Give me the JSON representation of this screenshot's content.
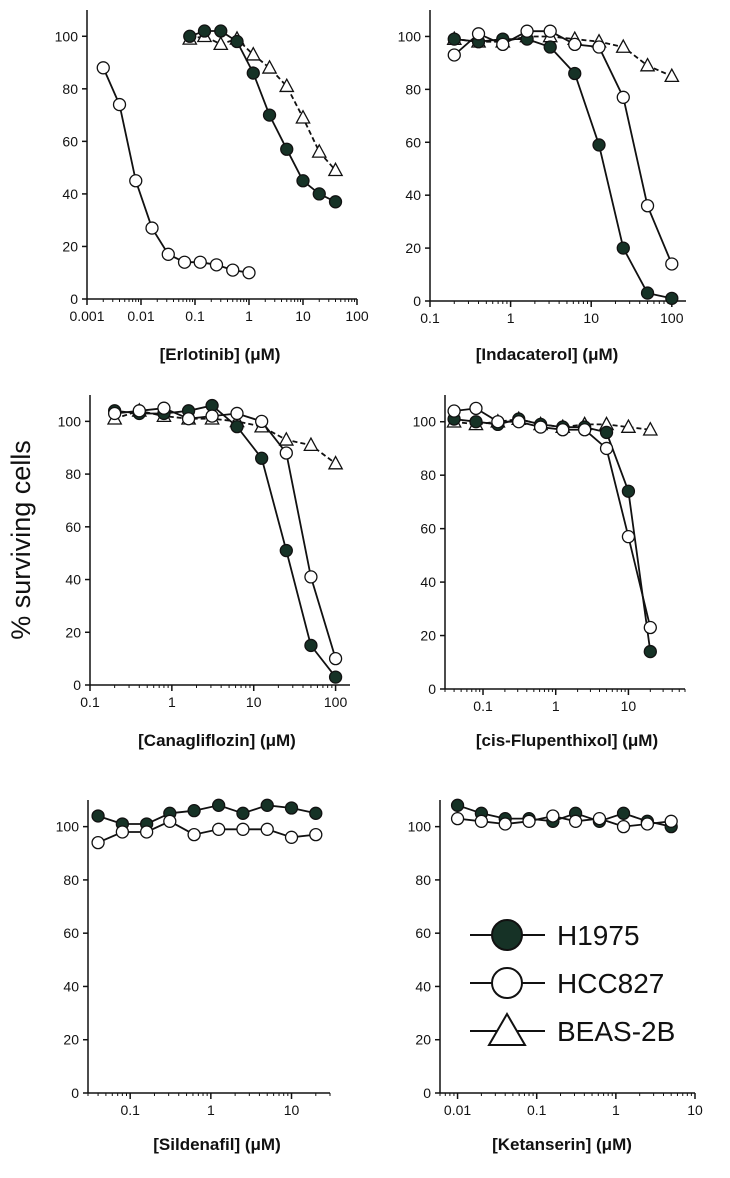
{
  "figure": {
    "ylabel": "% surviving cells",
    "colors": {
      "H1975": "#163226",
      "HCC827": "#ffffff",
      "BEAS-2B": "#ffffff",
      "ink": "#111111"
    }
  },
  "legend": {
    "entries": [
      {
        "name": "H1975",
        "marker": "filled-circle"
      },
      {
        "name": "HCC827",
        "marker": "open-circle"
      },
      {
        "name": "BEAS-2B",
        "marker": "open-triangle"
      }
    ]
  },
  "chart_data": [
    {
      "type": "line",
      "title": "",
      "xlabel": "[Erlotinib] (μM)",
      "ylabel": "% surviving cells",
      "xscale": "log",
      "xlim": [
        0.001,
        100
      ],
      "xticks": [
        0.001,
        0.01,
        0.1,
        1,
        10,
        100
      ],
      "xtick_labels": [
        "0.001",
        "0.01",
        "0.1",
        "1",
        "10",
        "100"
      ],
      "ylim": [
        0,
        110
      ],
      "yticks": [
        0,
        20,
        40,
        60,
        80,
        100
      ],
      "ytick_labels": [
        "0",
        "20",
        "40",
        "60",
        "80",
        "100"
      ],
      "series": [
        {
          "name": "H1975",
          "marker": "filled-circle",
          "line": "solid",
          "x": [
            0.08,
            0.15,
            0.3,
            0.6,
            1.2,
            2.4,
            5,
            10,
            20,
            40
          ],
          "y": [
            100,
            102,
            102,
            98,
            86,
            70,
            57,
            45,
            40,
            37
          ]
        },
        {
          "name": "HCC827",
          "marker": "open-circle",
          "line": "solid",
          "x": [
            0.002,
            0.004,
            0.008,
            0.016,
            0.032,
            0.064,
            0.125,
            0.25,
            0.5,
            1
          ],
          "y": [
            88,
            74,
            45,
            27,
            17,
            14,
            14,
            13,
            11,
            10
          ]
        },
        {
          "name": "BEAS-2B",
          "marker": "open-triangle",
          "line": "dashed",
          "x": [
            0.08,
            0.15,
            0.3,
            0.6,
            1.2,
            2.4,
            5,
            10,
            20,
            40
          ],
          "y": [
            99,
            100,
            97,
            99,
            93,
            88,
            81,
            69,
            56,
            49
          ]
        }
      ]
    },
    {
      "type": "line",
      "title": "",
      "xlabel": "[Indacaterol] (μM)",
      "ylabel": "% surviving cells",
      "xscale": "log",
      "xlim": [
        0.1,
        150
      ],
      "xticks": [
        0.1,
        1,
        10,
        100
      ],
      "xtick_labels": [
        "0.1",
        "1",
        "10",
        "100"
      ],
      "ylim": [
        0,
        110
      ],
      "yticks": [
        0,
        20,
        40,
        60,
        80,
        100
      ],
      "ytick_labels": [
        "0",
        "20",
        "40",
        "60",
        "80",
        "100"
      ],
      "series": [
        {
          "name": "H1975",
          "marker": "filled-circle",
          "line": "solid",
          "x": [
            0.2,
            0.4,
            0.8,
            1.6,
            3.1,
            6.25,
            12.5,
            25,
            50,
            100
          ],
          "y": [
            99,
            98,
            99,
            99,
            96,
            86,
            59,
            20,
            3,
            1
          ]
        },
        {
          "name": "HCC827",
          "marker": "open-circle",
          "line": "solid",
          "x": [
            0.2,
            0.4,
            0.8,
            1.6,
            3.1,
            6.25,
            12.5,
            25,
            50,
            100
          ],
          "y": [
            93,
            101,
            97,
            102,
            102,
            97,
            96,
            77,
            36,
            14
          ]
        },
        {
          "name": "BEAS-2B",
          "marker": "open-triangle",
          "line": "dashed",
          "x": [
            0.2,
            0.4,
            0.8,
            1.6,
            3.1,
            6.25,
            12.5,
            25,
            50,
            100
          ],
          "y": [
            99,
            98,
            98,
            100,
            100,
            99,
            98,
            96,
            89,
            85
          ]
        }
      ]
    },
    {
      "type": "line",
      "title": "",
      "xlabel": "[Canagliflozin] (μM)",
      "ylabel": "% surviving cells",
      "xscale": "log",
      "xlim": [
        0.1,
        150
      ],
      "xticks": [
        0.1,
        1,
        10,
        100
      ],
      "xtick_labels": [
        "0.1",
        "1",
        "10",
        "100"
      ],
      "ylim": [
        0,
        110
      ],
      "yticks": [
        0,
        20,
        40,
        60,
        80,
        100
      ],
      "ytick_labels": [
        "0",
        "20",
        "40",
        "60",
        "80",
        "100"
      ],
      "series": [
        {
          "name": "H1975",
          "marker": "filled-circle",
          "line": "solid",
          "x": [
            0.2,
            0.4,
            0.8,
            1.6,
            3.1,
            6.25,
            12.5,
            25,
            50,
            100
          ],
          "y": [
            104,
            103,
            103,
            104,
            106,
            98,
            86,
            51,
            15,
            3
          ]
        },
        {
          "name": "HCC827",
          "marker": "open-circle",
          "line": "solid",
          "x": [
            0.2,
            0.4,
            0.8,
            1.6,
            3.1,
            6.25,
            12.5,
            25,
            50,
            100
          ],
          "y": [
            103,
            104,
            105,
            101,
            102,
            103,
            100,
            88,
            41,
            10
          ]
        },
        {
          "name": "BEAS-2B",
          "marker": "open-triangle",
          "line": "dashed",
          "x": [
            0.2,
            0.4,
            0.8,
            1.6,
            3.1,
            6.25,
            12.5,
            25,
            50,
            100
          ],
          "y": [
            101,
            104,
            102,
            101,
            101,
            100,
            98,
            93,
            91,
            84
          ]
        }
      ]
    },
    {
      "type": "line",
      "title": "",
      "xlabel": "[cis-Flupenthixol] (μM)",
      "ylabel": "% surviving cells",
      "xscale": "log",
      "xlim": [
        0.03,
        60
      ],
      "xticks": [
        0.1,
        1,
        10
      ],
      "xtick_labels": [
        "0.1",
        "1",
        "10"
      ],
      "ylim": [
        0,
        110
      ],
      "yticks": [
        0,
        20,
        40,
        60,
        80,
        100
      ],
      "ytick_labels": [
        "0",
        "20",
        "40",
        "60",
        "80",
        "100"
      ],
      "series": [
        {
          "name": "H1975",
          "marker": "filled-circle",
          "line": "solid",
          "x": [
            0.04,
            0.08,
            0.16,
            0.31,
            0.62,
            1.25,
            2.5,
            5,
            10,
            20
          ],
          "y": [
            101,
            100,
            99,
            101,
            99,
            98,
            98,
            96,
            74,
            14
          ]
        },
        {
          "name": "HCC827",
          "marker": "open-circle",
          "line": "solid",
          "x": [
            0.04,
            0.08,
            0.16,
            0.31,
            0.62,
            1.25,
            2.5,
            5,
            10,
            20
          ],
          "y": [
            104,
            105,
            100,
            100,
            98,
            97,
            97,
            90,
            57,
            23
          ]
        },
        {
          "name": "BEAS-2B",
          "marker": "open-triangle",
          "line": "dashed",
          "x": [
            0.04,
            0.08,
            0.16,
            0.31,
            0.62,
            1.25,
            2.5,
            5,
            10,
            20
          ],
          "y": [
            100,
            99,
            100,
            101,
            99,
            98,
            99,
            99,
            98,
            97
          ]
        }
      ]
    },
    {
      "type": "line",
      "title": "",
      "xlabel": "[Sildenafil] (μM)",
      "ylabel": "% surviving cells",
      "xscale": "log",
      "xlim": [
        0.03,
        30
      ],
      "xticks": [
        0.1,
        1,
        10
      ],
      "xtick_labels": [
        "0.1",
        "1",
        "10"
      ],
      "ylim": [
        0,
        110
      ],
      "yticks": [
        0,
        20,
        40,
        60,
        80,
        100
      ],
      "ytick_labels": [
        "0",
        "20",
        "40",
        "60",
        "80",
        "100"
      ],
      "series": [
        {
          "name": "H1975",
          "marker": "filled-circle",
          "line": "solid",
          "x": [
            0.04,
            0.08,
            0.16,
            0.31,
            0.62,
            1.25,
            2.5,
            5,
            10,
            20
          ],
          "y": [
            104,
            101,
            101,
            105,
            106,
            108,
            105,
            108,
            107,
            105
          ]
        },
        {
          "name": "HCC827",
          "marker": "open-circle",
          "line": "solid",
          "x": [
            0.04,
            0.08,
            0.16,
            0.31,
            0.62,
            1.25,
            2.5,
            5,
            10,
            20
          ],
          "y": [
            94,
            98,
            98,
            102,
            97,
            99,
            99,
            99,
            96,
            97
          ]
        }
      ]
    },
    {
      "type": "line",
      "title": "",
      "xlabel": "[Ketanserin] (μM)",
      "ylabel": "% surviving cells",
      "xscale": "log",
      "xlim": [
        0.006,
        10
      ],
      "xticks": [
        0.01,
        0.1,
        1,
        10
      ],
      "xtick_labels": [
        "0.01",
        "0.1",
        "1",
        "10"
      ],
      "ylim": [
        0,
        110
      ],
      "yticks": [
        0,
        20,
        40,
        60,
        80,
        100
      ],
      "ytick_labels": [
        "0",
        "20",
        "40",
        "60",
        "80",
        "100"
      ],
      "series": [
        {
          "name": "H1975",
          "marker": "filled-circle",
          "line": "solid",
          "x": [
            0.01,
            0.02,
            0.04,
            0.08,
            0.16,
            0.31,
            0.62,
            1.25,
            2.5,
            5
          ],
          "y": [
            108,
            105,
            103,
            103,
            102,
            105,
            102,
            105,
            102,
            100
          ]
        },
        {
          "name": "HCC827",
          "marker": "open-circle",
          "line": "solid",
          "x": [
            0.01,
            0.02,
            0.04,
            0.08,
            0.16,
            0.31,
            0.62,
            1.25,
            2.5,
            5
          ],
          "y": [
            103,
            102,
            101,
            102,
            104,
            102,
            103,
            100,
            101,
            102
          ]
        }
      ]
    }
  ]
}
